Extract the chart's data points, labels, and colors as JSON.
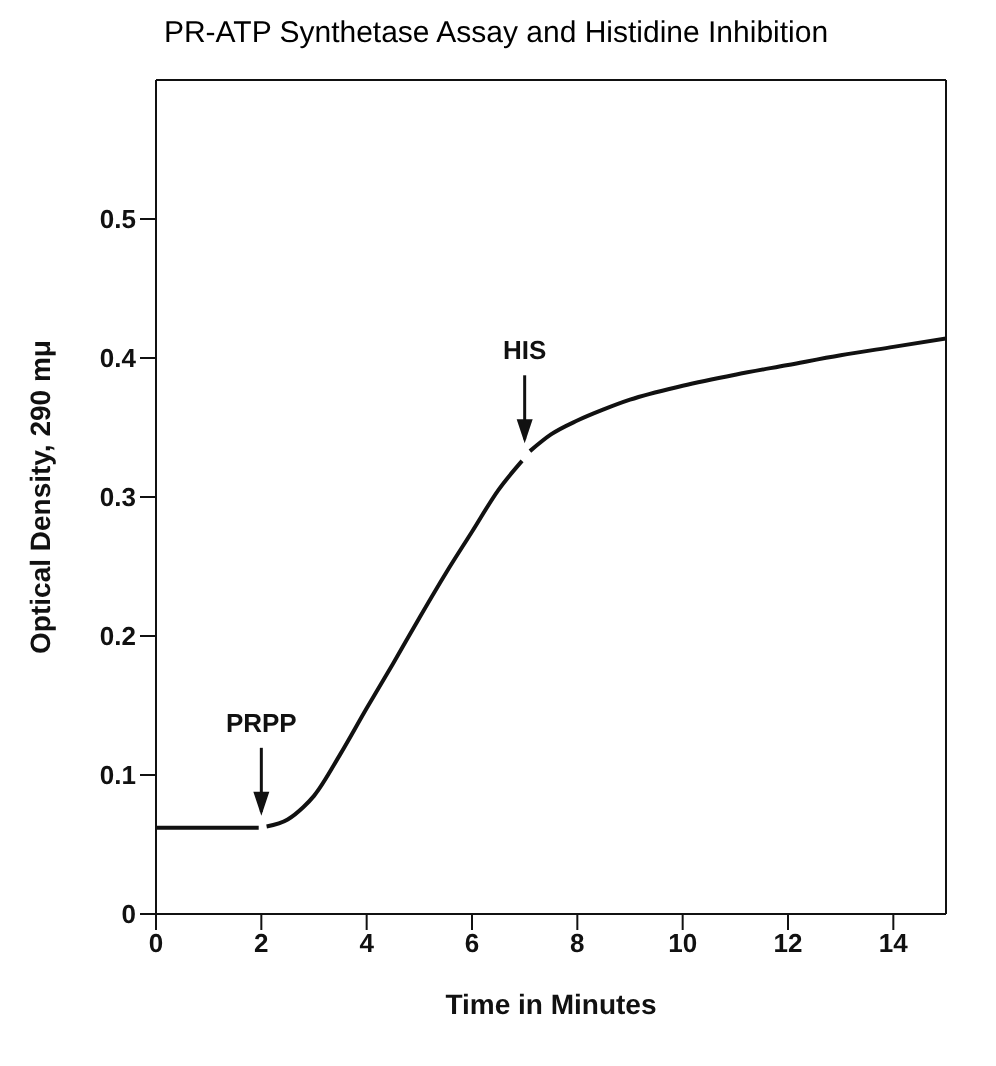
{
  "chart_data": {
    "type": "line",
    "title": "PR-ATP Synthetase Assay and Histidine Inhibition",
    "xlabel": "Time in Minutes",
    "ylabel": "Optical Density,  290 mμ",
    "x": [
      0,
      1,
      1.95,
      2,
      2.1,
      2.5,
      2.8,
      3,
      3.5,
      4,
      4.5,
      5,
      5.5,
      6,
      6.5,
      6.95,
      7,
      7.1,
      7.5,
      8,
      8.5,
      9,
      10,
      11,
      12,
      13,
      14,
      15
    ],
    "series": [
      {
        "color": "#111111",
        "values": [
          0.062,
          0.062,
          0.062,
          null,
          0.063,
          0.068,
          0.077,
          0.085,
          0.115,
          0.148,
          0.18,
          0.213,
          0.245,
          0.275,
          0.305,
          0.326,
          null,
          0.333,
          0.345,
          0.355,
          0.363,
          0.37,
          0.38,
          0.388,
          0.395,
          0.402,
          0.408,
          0.414
        ]
      }
    ],
    "annotations": [
      {
        "text": "PRPP",
        "x": 2,
        "y": 0.062
      },
      {
        "text": "HIS",
        "x": 7,
        "y": 0.33
      }
    ],
    "xlim": [
      0,
      15
    ],
    "xticks": [
      0,
      2,
      4,
      6,
      8,
      10,
      12,
      14
    ],
    "ylim": [
      0,
      0.6
    ],
    "yticks": [
      0,
      0.1,
      0.2,
      0.3,
      0.4,
      0.5
    ],
    "grid": false,
    "legend": false,
    "marker": "none",
    "line_style": "solid"
  }
}
